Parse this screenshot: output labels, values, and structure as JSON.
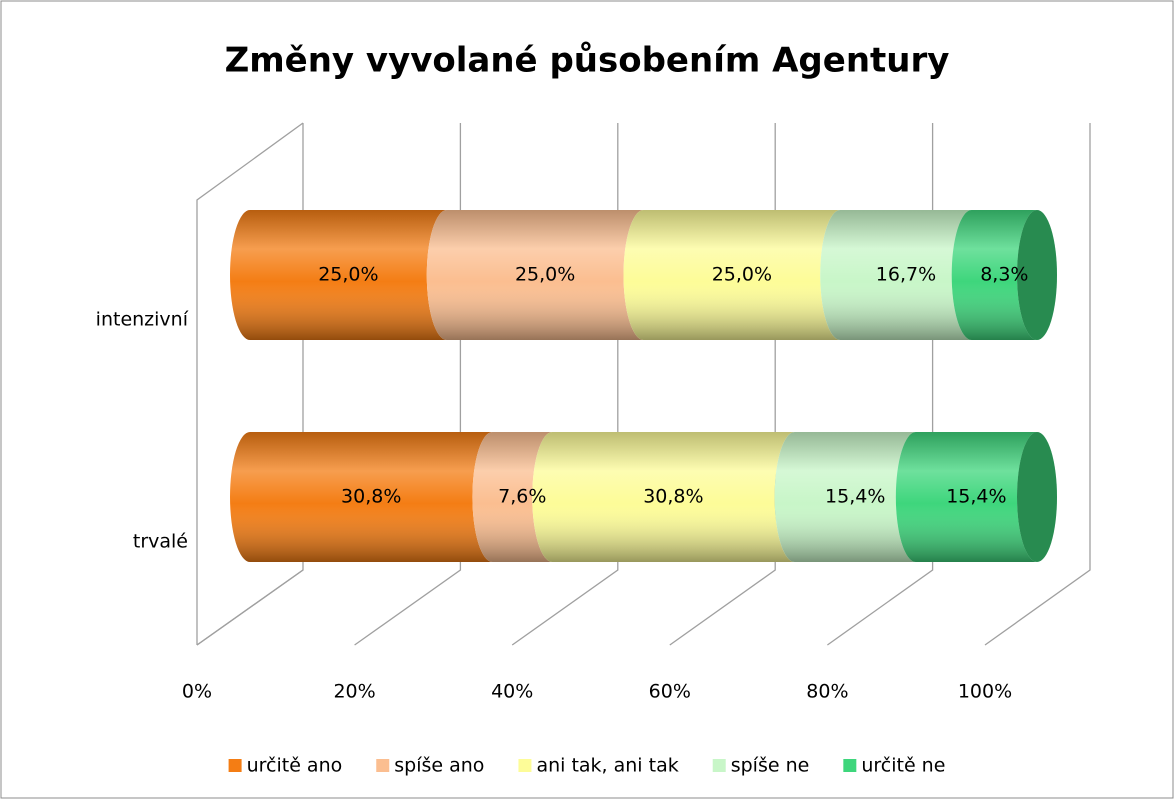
{
  "chart_data": {
    "type": "stacked-bar-3d",
    "title": "Změny vyvolané působením Agentury",
    "categories": [
      "intenzivní",
      "trvalé"
    ],
    "series": [
      {
        "name": "určitě ano",
        "color": "#f47d14",
        "values": [
          25.0,
          30.8
        ],
        "value_labels": [
          "25,0%",
          "30,8%"
        ]
      },
      {
        "name": "spíše ano",
        "color": "#fbbe90",
        "values": [
          25.0,
          7.6
        ],
        "value_labels": [
          "25,0%",
          "7,6%"
        ]
      },
      {
        "name": "ani tak, ani tak",
        "color": "#fdfc98",
        "values": [
          25.0,
          30.8
        ],
        "value_labels": [
          "25,0%",
          "30,8%"
        ]
      },
      {
        "name": "spíše ne",
        "color": "#c8f6c8",
        "values": [
          16.7,
          15.4
        ],
        "value_labels": [
          "16,7%",
          "15,4%"
        ]
      },
      {
        "name": "určitě ne",
        "color": "#3ed67c",
        "values": [
          8.3,
          15.4
        ],
        "value_labels": [
          "8,3%",
          "15,4%"
        ]
      }
    ],
    "xlim": [
      0,
      100
    ],
    "xticks": [
      {
        "value": 0,
        "label": "0%"
      },
      {
        "value": 20,
        "label": "20%"
      },
      {
        "value": 40,
        "label": "40%"
      },
      {
        "value": 60,
        "label": "60%"
      },
      {
        "value": 80,
        "label": "80%"
      },
      {
        "value": 100,
        "label": "100%"
      }
    ],
    "grid": true,
    "legend": "bottom"
  }
}
